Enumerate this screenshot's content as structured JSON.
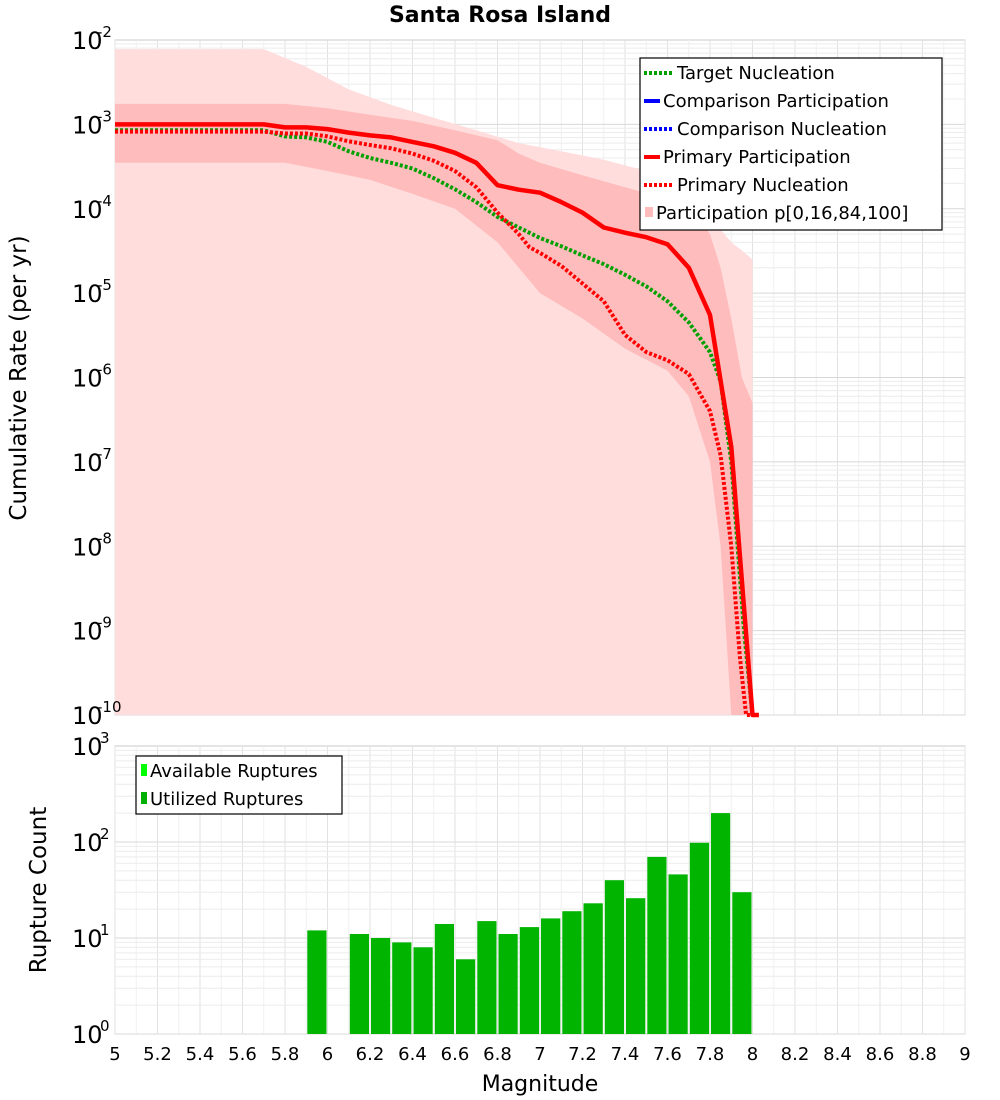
{
  "chart_data": [
    {
      "type": "line",
      "title": "Santa Rosa Island",
      "ylabel": "Cumulative Rate (per yr)",
      "xlim": [
        5,
        9
      ],
      "ylim": [
        1e-10,
        0.01
      ],
      "yscale": "log",
      "y_ticks": [
        {
          "base": "10",
          "exp": "-2"
        },
        {
          "base": "10",
          "exp": "-3"
        },
        {
          "base": "10",
          "exp": "-4"
        },
        {
          "base": "10",
          "exp": "-5"
        },
        {
          "base": "10",
          "exp": "-6"
        },
        {
          "base": "10",
          "exp": "-7"
        },
        {
          "base": "10",
          "exp": "-8"
        },
        {
          "base": "10",
          "exp": "-9"
        },
        {
          "base": "10",
          "exp": "-10"
        }
      ],
      "grid": true,
      "legend_position": "top-right",
      "legend": [
        {
          "label": "Target Nucleation",
          "color": "#00a000",
          "style": "dotted"
        },
        {
          "label": "Comparison Participation",
          "color": "#0000ff",
          "style": "solid"
        },
        {
          "label": "Comparison Nucleation",
          "color": "#0000ff",
          "style": "dotted"
        },
        {
          "label": "Primary Participation",
          "color": "#ff0000",
          "style": "solid"
        },
        {
          "label": "Primary Nucleation",
          "color": "#ff0000",
          "style": "dotted"
        },
        {
          "label": "Participation p[0,16,84,100]",
          "color": "#ffb0b0",
          "style": "band"
        }
      ],
      "bands": [
        {
          "name": "p0-p100",
          "color": "#ffdddd",
          "x": [
            5.0,
            5.7,
            5.9,
            6.1,
            6.3,
            6.5,
            6.7,
            6.9,
            7.1,
            7.3,
            7.5,
            7.7,
            7.8,
            7.9,
            7.95,
            8.0
          ],
          "lo": [
            1e-10,
            1e-10,
            1e-10,
            1e-10,
            1e-10,
            1e-10,
            1e-10,
            1e-10,
            1e-10,
            1e-10,
            1e-10,
            1e-10,
            1e-10,
            1e-10,
            1e-10,
            1e-10
          ],
          "hi": [
            0.0078,
            0.0078,
            0.0048,
            0.0026,
            0.0017,
            0.0012,
            0.00085,
            0.0006,
            0.00048,
            0.00038,
            0.00028,
            0.00016,
            8e-05,
            4e-05,
            3.2e-05,
            2.5e-05
          ]
        },
        {
          "name": "p16-p84",
          "color": "#ffbcbc",
          "x": [
            5.0,
            5.8,
            6.0,
            6.2,
            6.4,
            6.6,
            6.8,
            6.9,
            7.0,
            7.2,
            7.4,
            7.6,
            7.7,
            7.8,
            7.85,
            7.9,
            7.95,
            8.0
          ],
          "lo": [
            0.00035,
            0.00035,
            0.00028,
            0.00022,
            0.00015,
            0.0001,
            4e-05,
            2e-05,
            1e-05,
            5e-06,
            2.2e-06,
            1.2e-06,
            6e-07,
            1e-07,
            1e-08,
            1e-10,
            1e-10,
            1e-10
          ],
          "hi": [
            0.00175,
            0.00175,
            0.00155,
            0.0013,
            0.0011,
            0.00085,
            0.00065,
            0.00045,
            0.00035,
            0.00025,
            0.00018,
            0.00013,
            0.00011,
            5e-05,
            2e-05,
            5e-06,
            1e-06,
            5e-07
          ]
        }
      ],
      "series": [
        {
          "name": "Target Nucleation",
          "color": "#00a000",
          "style": "dotted",
          "x": [
            5.0,
            5.7,
            5.8,
            5.9,
            6.0,
            6.1,
            6.2,
            6.3,
            6.4,
            6.5,
            6.6,
            6.7,
            6.8,
            6.9,
            7.0,
            7.1,
            7.2,
            7.3,
            7.4,
            7.5,
            7.6,
            7.7,
            7.8,
            7.85,
            7.9,
            7.93,
            7.96,
            8.0,
            8.02
          ],
          "y": [
            0.00085,
            0.00085,
            0.00072,
            0.0007,
            0.00062,
            0.00048,
            0.0004,
            0.00035,
            0.0003,
            0.00023,
            0.00017,
            0.00012,
            8e-05,
            6e-05,
            4.5e-05,
            3.6e-05,
            2.8e-05,
            2.2e-05,
            1.65e-05,
            1.2e-05,
            8e-06,
            4.5e-06,
            2e-06,
            9e-07,
            1e-07,
            1e-08,
            1e-09,
            1e-10,
            1e-10
          ]
        },
        {
          "name": "Primary Participation",
          "color": "#ff0000",
          "style": "solid",
          "x": [
            5.0,
            5.7,
            5.8,
            5.9,
            6.0,
            6.1,
            6.2,
            6.3,
            6.4,
            6.5,
            6.6,
            6.7,
            6.8,
            6.9,
            7.0,
            7.1,
            7.2,
            7.3,
            7.4,
            7.5,
            7.6,
            7.7,
            7.8,
            7.9,
            8.0,
            8.03
          ],
          "y": [
            0.001,
            0.001,
            0.00092,
            0.00092,
            0.00088,
            0.0008,
            0.00074,
            0.0007,
            0.00062,
            0.00055,
            0.00046,
            0.00035,
            0.00019,
            0.000168,
            0.000155,
            0.00012,
            9e-05,
            6e-05,
            5.2e-05,
            4.6e-05,
            3.8e-05,
            2e-05,
            5.5e-06,
            1.5e-07,
            1e-10,
            1e-10
          ]
        },
        {
          "name": "Primary Nucleation",
          "color": "#ff0000",
          "style": "dotted",
          "x": [
            5.0,
            5.7,
            5.8,
            5.9,
            6.0,
            6.1,
            6.2,
            6.3,
            6.4,
            6.5,
            6.6,
            6.7,
            6.8,
            6.9,
            6.95,
            7.0,
            7.1,
            7.2,
            7.3,
            7.4,
            7.5,
            7.6,
            7.7,
            7.8,
            7.85,
            7.9,
            7.94,
            7.97,
            8.0,
            8.02
          ],
          "y": [
            0.00082,
            0.00082,
            0.00078,
            0.00078,
            0.00072,
            0.00063,
            0.00057,
            0.00052,
            0.00045,
            0.00037,
            0.00028,
            0.00018,
            9e-05,
            5e-05,
            3.5e-05,
            3e-05,
            2.1e-05,
            1.3e-05,
            8e-06,
            3.2e-06,
            2e-06,
            1.6e-06,
            1.1e-06,
            4e-07,
            1.2e-07,
            1e-08,
            5e-10,
            1e-10,
            1e-10,
            1e-10
          ]
        }
      ]
    },
    {
      "type": "bar",
      "ylabel": "Rupture Count",
      "xlabel": "Magnitude",
      "xlim": [
        5,
        9
      ],
      "ylim": [
        1,
        1000
      ],
      "yscale": "log",
      "y_ticks": [
        {
          "base": "10",
          "exp": "3"
        },
        {
          "base": "10",
          "exp": "2"
        },
        {
          "base": "10",
          "exp": "1"
        },
        {
          "base": "10",
          "exp": "0"
        }
      ],
      "x_ticks": [
        "5",
        "5.2",
        "5.4",
        "5.6",
        "5.8",
        "6",
        "6.2",
        "6.4",
        "6.6",
        "6.8",
        "7",
        "7.2",
        "7.4",
        "7.6",
        "7.8",
        "8",
        "8.2",
        "8.4",
        "8.6",
        "8.8",
        "9"
      ],
      "grid": true,
      "legend_position": "top-left",
      "legend": [
        {
          "label": "Available Ruptures",
          "color": "#00ff00"
        },
        {
          "label": "Utilized Ruptures",
          "color": "#00b000"
        }
      ],
      "bin_width": 0.1,
      "bar_color": "#00b400",
      "bins": [
        5.95,
        6.15,
        6.25,
        6.35,
        6.45,
        6.55,
        6.65,
        6.75,
        6.85,
        6.95,
        7.05,
        7.15,
        7.25,
        7.35,
        7.45,
        7.55,
        7.65,
        7.75,
        7.85,
        7.95
      ],
      "values": [
        12,
        11,
        10,
        9,
        8,
        14,
        6,
        15,
        11,
        13,
        16,
        19,
        23,
        40,
        26,
        70,
        46,
        98,
        200,
        30
      ]
    }
  ]
}
